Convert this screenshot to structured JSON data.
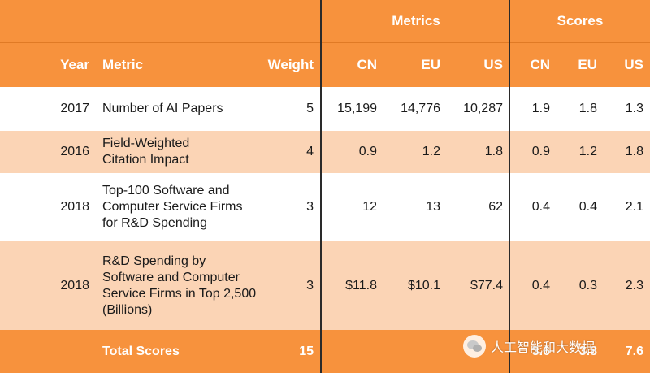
{
  "header": {
    "group_metrics": "Metrics",
    "group_scores": "Scores",
    "col_year": "Year",
    "col_metric": "Metric",
    "col_weight": "Weight",
    "metrics_cols": [
      "CN",
      "EU",
      "US"
    ],
    "scores_cols": [
      "CN",
      "EU",
      "US"
    ]
  },
  "rows": [
    {
      "year": "2017",
      "metric": "Number of AI Papers",
      "weight": "5",
      "metrics": [
        "15,199",
        "14,776",
        "10,287"
      ],
      "scores": [
        "1.9",
        "1.8",
        "1.3"
      ]
    },
    {
      "year": "2016",
      "metric": "Field-Weighted Citation Impact",
      "weight": "4",
      "metrics": [
        "0.9",
        "1.2",
        "1.8"
      ],
      "scores": [
        "0.9",
        "1.2",
        "1.8"
      ]
    },
    {
      "year": "2018",
      "metric": "Top-100 Software and Computer Service Firms for R&D Spending",
      "weight": "3",
      "metrics": [
        "12",
        "13",
        "62"
      ],
      "scores": [
        "0.4",
        "0.4",
        "2.1"
      ]
    },
    {
      "year": "2018",
      "metric": "R&D Spending by Software and Computer Service Firms in Top 2,500 (Billions)",
      "weight": "3",
      "metrics": [
        "$11.8",
        "$10.1",
        "$77.4"
      ],
      "scores": [
        "0.4",
        "0.3",
        "2.3"
      ]
    }
  ],
  "total": {
    "label": "Total Scores",
    "weight": "15",
    "scores": [
      "3.6",
      "3.8",
      "7.6"
    ]
  },
  "watermark": {
    "text": "人工智能和大数据",
    "icon": "wechat-icon"
  },
  "colors": {
    "header_orange": "#f7923d",
    "row_white": "#ffffff",
    "row_peach": "#fbd4b5",
    "divider": "#2a2a2a"
  }
}
